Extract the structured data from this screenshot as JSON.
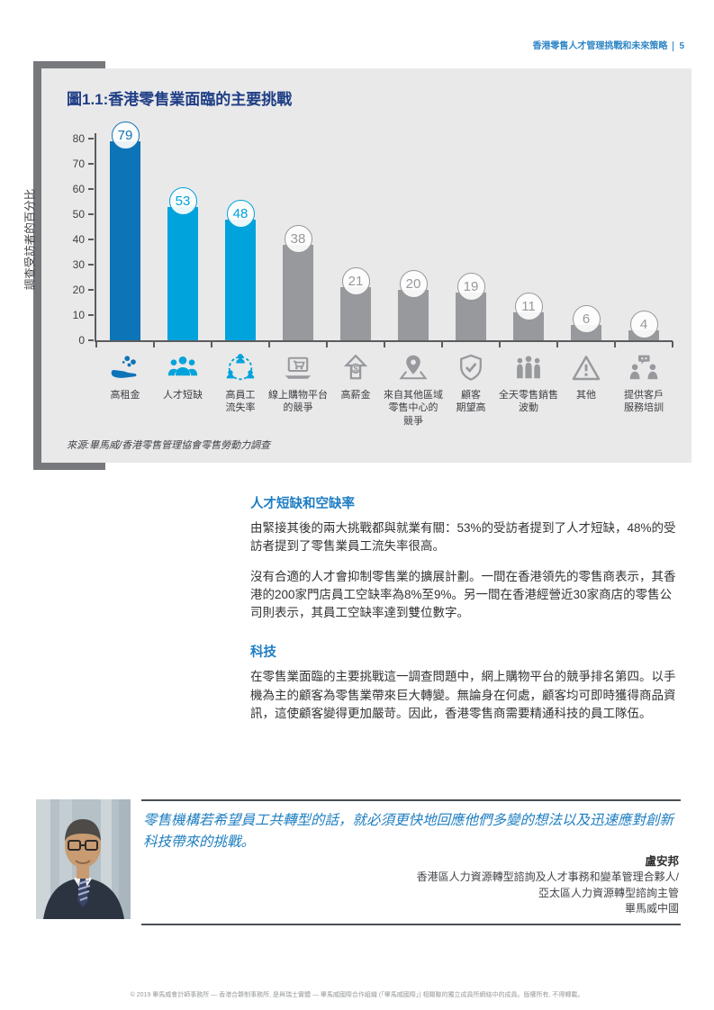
{
  "header": {
    "title": "香港零售人才管理挑戰和未來策略",
    "page_number": "5"
  },
  "chart_panel": {
    "title": "圖1.1:香港零售業面臨的主要挑戰",
    "source": "來源:畢馬威/香港零售管理協會零售勞動力調查"
  },
  "chart_data": {
    "type": "bar",
    "title": "圖1.1:香港零售業面臨的主要挑戰",
    "xlabel": "",
    "ylabel": "調查受訪者的百分比",
    "ylim": [
      0,
      80
    ],
    "yticks": [
      0,
      10,
      20,
      30,
      40,
      50,
      60,
      70,
      80
    ],
    "grid": false,
    "legend": "none",
    "categories": [
      "高租金",
      "人才短缺",
      "高員工\n流失率",
      "線上購物平台\n的競爭",
      "高薪金",
      "來自其他區域\n零售中心的\n競爭",
      "顧客\n期望高",
      "全天零售銷售\n波動",
      "其他",
      "提供客戶\n服務培訓"
    ],
    "values": [
      79,
      53,
      48,
      38,
      21,
      20,
      19,
      11,
      6,
      4
    ],
    "bar_colors": [
      "#0e74b8",
      "#00a3db",
      "#00a3db",
      "#97999c",
      "#97999c",
      "#97999c",
      "#97999c",
      "#97999c",
      "#97999c",
      "#97999c"
    ],
    "icons": [
      "hand-coins-icon",
      "people-group-icon",
      "staff-turnover-icon",
      "online-shopping-cart-icon",
      "salary-up-arrow-icon",
      "map-pin-icon",
      "shield-check-icon",
      "people-fluctuation-icon",
      "warning-triangle-icon",
      "customer-service-training-icon"
    ]
  },
  "sections": [
    {
      "heading": "人才短缺和空缺率",
      "paragraphs": [
        "由緊接其後的兩大挑戰都與就業有關：53%的受訪者提到了人才短缺，48%的受訪者提到了零售業員工流失率很高。",
        "沒有合適的人才會抑制零售業的擴展計劃。一間在香港領先的零售商表示，其香港的200家門店員工空缺率為8%至9%。另一間在香港經營近30家商店的零售公司則表示，其員工空缺率達到雙位數字。"
      ]
    },
    {
      "heading": "科技",
      "paragraphs": [
        "在零售業面臨的主要挑戰這一調查問題中，網上購物平台的競爭排名第四。以手機為主的顧客為零售業帶來巨大轉變。無論身在何處，顧客均可即時獲得商品資訊，這使顧客變得更加嚴苛。因此，香港零售商需要精通科技的員工隊伍。"
      ]
    }
  ],
  "quote": {
    "text": "零售機構若希望員工共轉型的話，就必須更快地回應他們多變的想法以及迅速應對創新科技帶來的挑戰。",
    "author": "盧安邦",
    "titles": [
      "香港區人力資源轉型諮詢及人才事務和變革管理合夥人/",
      "亞太區人力資源轉型諮詢主管",
      "畢馬威中國"
    ],
    "photo": "portrait-photo"
  },
  "footer": {
    "text": "© 2019 畢馬威會計師事務所 — 香港合夥制事務所, 是與瑞士實體 — 畢馬威國際合作組織 (「畢馬威國際」) 相關聯的獨立成員所網絡中的成員。版權所有, 不得轉載。"
  },
  "colors": {
    "accent_dark_blue": "#1f3e85",
    "heading_blue": "#1d7dc4",
    "bar_primary": "#0e74b8",
    "bar_secondary": "#00a3db",
    "bar_gray": "#97999c",
    "panel_bg": "#e9e9ea",
    "bracket_gray": "#77787b"
  }
}
